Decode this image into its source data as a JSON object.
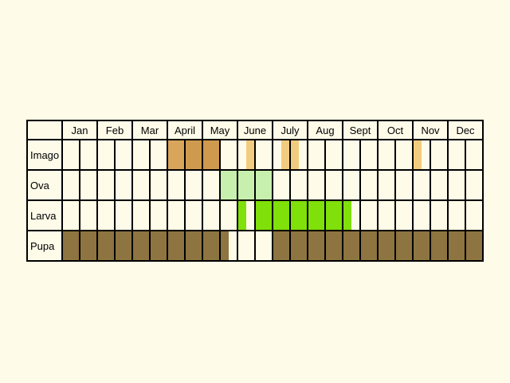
{
  "chart_data": {
    "type": "table",
    "title": "",
    "months": [
      "Jan",
      "Feb",
      "Mar",
      "April",
      "May",
      "June",
      "July",
      "Aug",
      "Sept",
      "Oct",
      "Nov",
      "Dec"
    ],
    "periods_per_month": 2,
    "rows": [
      {
        "label": "Imago",
        "segments": [
          {
            "from": 3.0,
            "to": 3.5,
            "color": "#d9a55b"
          },
          {
            "from": 3.5,
            "to": 4.5,
            "color": "#cf9a4e"
          },
          {
            "from": 5.25,
            "to": 5.5,
            "color": "#f2cc7e"
          },
          {
            "from": 6.25,
            "to": 6.5,
            "color": "#f2cc7e"
          },
          {
            "from": 6.5,
            "to": 6.75,
            "color": "#f2cc7e"
          },
          {
            "from": 10.0,
            "to": 10.25,
            "color": "#f2cc7e"
          }
        ]
      },
      {
        "label": "Ova",
        "segments": [
          {
            "from": 4.5,
            "to": 6.0,
            "color": "#c7efad"
          }
        ]
      },
      {
        "label": "Larva",
        "segments": [
          {
            "from": 5.0,
            "to": 5.25,
            "color": "#7fe00a"
          },
          {
            "from": 5.5,
            "to": 8.25,
            "color": "#7fe00a"
          }
        ]
      },
      {
        "label": "Pupa",
        "segments": [
          {
            "from": 0.0,
            "to": 4.75,
            "color": "#8d7440"
          },
          {
            "from": 6.0,
            "to": 12.0,
            "color": "#8d7440"
          }
        ]
      }
    ],
    "colors": {
      "background": "#fefbe9",
      "grid": "#000000"
    }
  }
}
